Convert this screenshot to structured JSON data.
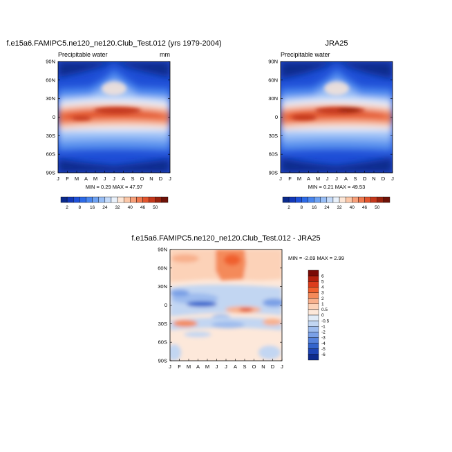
{
  "chart_data": [
    {
      "type": "heatmap",
      "title": "f.e15a6.FAMIPC5.ne120_ne120.Club_Test.012 (yrs 1979-2004)",
      "left_label": "Precipitable water",
      "units": "mm",
      "stats": "MIN =   0.29 MAX =  47.97",
      "x_ticks": [
        "J",
        "F",
        "M",
        "A",
        "M",
        "J",
        "J",
        "A",
        "S",
        "O",
        "N",
        "D",
        "J"
      ],
      "y_ticks": [
        "90N",
        "60N",
        "30N",
        "0",
        "30S",
        "60S",
        "90S"
      ],
      "ylim": [
        -90,
        90
      ],
      "colorbar_ticks": [
        "2",
        "8",
        "16",
        "24",
        "32",
        "40",
        "46",
        "50"
      ]
    },
    {
      "type": "heatmap",
      "title": "JRA25",
      "left_label": "Precipitable water",
      "units": "",
      "stats": "MIN =   0.21 MAX =  49.53",
      "x_ticks": [
        "J",
        "F",
        "M",
        "A",
        "M",
        "J",
        "J",
        "A",
        "S",
        "O",
        "N",
        "D",
        "J"
      ],
      "y_ticks": [
        "90N",
        "60N",
        "30N",
        "0",
        "30S",
        "60S",
        "90S"
      ],
      "ylim": [
        -90,
        90
      ],
      "colorbar_ticks": [
        "2",
        "8",
        "16",
        "24",
        "32",
        "40",
        "46",
        "50"
      ]
    },
    {
      "type": "heatmap",
      "title": "f.e15a6.FAMIPC5.ne120_ne120.Club_Test.012 - JRA25",
      "stats": "MIN =  -2.69 MAX =    2.99",
      "x_ticks": [
        "J",
        "F",
        "M",
        "A",
        "M",
        "J",
        "J",
        "A",
        "S",
        "O",
        "N",
        "D",
        "J"
      ],
      "y_ticks": [
        "90N",
        "60N",
        "30N",
        "0",
        "30S",
        "60S",
        "90S"
      ],
      "ylim": [
        -90,
        90
      ],
      "colorbar_levels": [
        "6",
        "5",
        "4",
        "3",
        "2",
        "1",
        "0.5",
        "0",
        "-0.5",
        "-1",
        "-2",
        "-3",
        "-4",
        "-5",
        "-6"
      ]
    }
  ],
  "colors": {
    "abs_scale": [
      "#0a2a8c",
      "#1238b8",
      "#1e50d8",
      "#2d6ae6",
      "#4a86ee",
      "#6ea2f2",
      "#98bef6",
      "#c4daf9",
      "#e9f1fb",
      "#fde6d6",
      "#fbc7a8",
      "#f7a07a",
      "#f07a50",
      "#e2552e",
      "#c4381c",
      "#98220e",
      "#6e1208"
    ],
    "diff_scale": [
      "#7a0a06",
      "#b4200e",
      "#dc3c1c",
      "#f0602e",
      "#f48a5a",
      "#f8b08c",
      "#fcd2b8",
      "#fde8da",
      "#e2ecf8",
      "#c2d6f2",
      "#9ebcee",
      "#7aa0e6",
      "#5682dc",
      "#3464cc",
      "#1e44b4",
      "#0e2a8c"
    ]
  }
}
